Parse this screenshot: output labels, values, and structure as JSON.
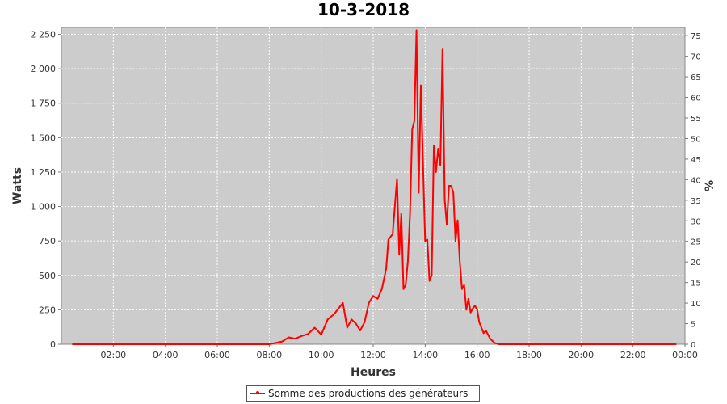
{
  "chart_data": {
    "type": "line",
    "title": "10-3-2018",
    "xlabel": "Heures",
    "ylabel": "Watts",
    "y2label": "%",
    "background": "#cccccc",
    "grid": true,
    "legend_position": "bottom",
    "series_color": "#ff0000",
    "xlim": [
      "00:00",
      "24:00"
    ],
    "ylim": [
      0,
      2300
    ],
    "y2lim": [
      0,
      77
    ],
    "x_ticks": [
      "02:00",
      "04:00",
      "06:00",
      "08:00",
      "10:00",
      "12:00",
      "14:00",
      "16:00",
      "18:00",
      "20:00",
      "22:00",
      "00:00"
    ],
    "y_ticks": [
      "0",
      "250",
      "500",
      "750",
      "1 000",
      "1 250",
      "1 500",
      "1 750",
      "2 000",
      "2 250"
    ],
    "y2_ticks": [
      "0",
      "5",
      "10",
      "15",
      "20",
      "25",
      "30",
      "35",
      "40",
      "45",
      "50",
      "55",
      "60",
      "65",
      "70",
      "75"
    ],
    "series": [
      {
        "name": "Somme des productions des  générateurs",
        "x": [
          "00:25",
          "08:00",
          "08:30",
          "08:45",
          "09:00",
          "09:15",
          "09:30",
          "09:45",
          "10:00",
          "10:15",
          "10:30",
          "10:45",
          "10:50",
          "11:00",
          "11:10",
          "11:20",
          "11:30",
          "11:40",
          "11:50",
          "12:00",
          "12:10",
          "12:20",
          "12:30",
          "12:35",
          "12:45",
          "12:55",
          "13:00",
          "13:05",
          "13:10",
          "13:15",
          "13:20",
          "13:25",
          "13:30",
          "13:35",
          "13:40",
          "13:45",
          "13:50",
          "14:00",
          "14:05",
          "14:10",
          "14:15",
          "14:20",
          "14:25",
          "14:30",
          "14:35",
          "14:40",
          "14:45",
          "14:50",
          "14:55",
          "15:00",
          "15:05",
          "15:10",
          "15:15",
          "15:20",
          "15:25",
          "15:30",
          "15:35",
          "15:40",
          "15:45",
          "15:50",
          "15:55",
          "16:00",
          "16:05",
          "16:15",
          "16:20",
          "16:30",
          "16:40",
          "16:50",
          "17:00",
          "17:10",
          "17:20",
          "17:30",
          "17:40",
          "17:50",
          "18:00",
          "18:10",
          "18:20",
          "18:30",
          "18:45",
          "19:00",
          "23:40"
        ],
        "values": [
          0,
          0,
          20,
          50,
          40,
          60,
          75,
          120,
          70,
          180,
          220,
          280,
          300,
          120,
          180,
          150,
          100,
          160,
          300,
          350,
          330,
          400,
          550,
          760,
          800,
          1200,
          650,
          950,
          400,
          430,
          600,
          950,
          1560,
          1620,
          2280,
          1100,
          1880,
          750,
          760,
          460,
          500,
          1440,
          1250,
          1420,
          1300,
          2140,
          1050,
          870,
          1150,
          1150,
          1100,
          750,
          900,
          600,
          400,
          430,
          250,
          330,
          230,
          260,
          280,
          250,
          160,
          80,
          100,
          40,
          10,
          0,
          0,
          0,
          0,
          0,
          0,
          0,
          0,
          0,
          0,
          0,
          0,
          0,
          0
        ]
      }
    ]
  }
}
